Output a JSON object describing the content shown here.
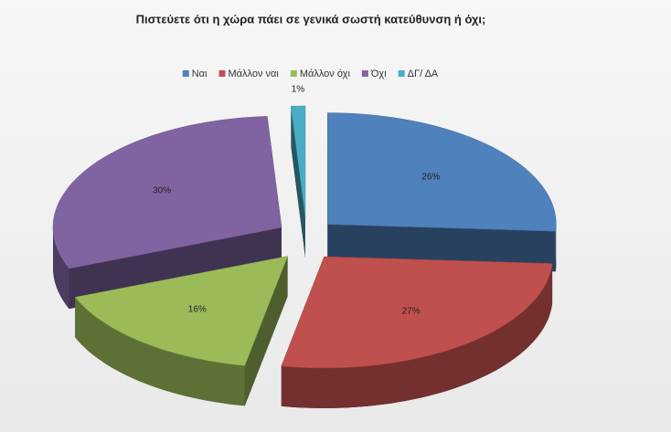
{
  "chart_data": {
    "type": "pie",
    "title": "Πιστεύετε ότι η χώρα πάει σε γενικά σωστή κατεύθυνση ή όχι;",
    "categories": [
      "Ναι",
      "Μάλλον ναι",
      "Μάλλον όχι",
      "Όχι",
      "ΔΓ/ ΔΑ"
    ],
    "values": [
      26,
      27,
      16,
      30,
      1
    ],
    "value_labels": [
      "26%",
      "27%",
      "16%",
      "30%",
      "1%"
    ],
    "colors": [
      "#4f81bd",
      "#c0504d",
      "#9bbb59",
      "#8064a2",
      "#4bacc6"
    ],
    "legend": "top"
  }
}
